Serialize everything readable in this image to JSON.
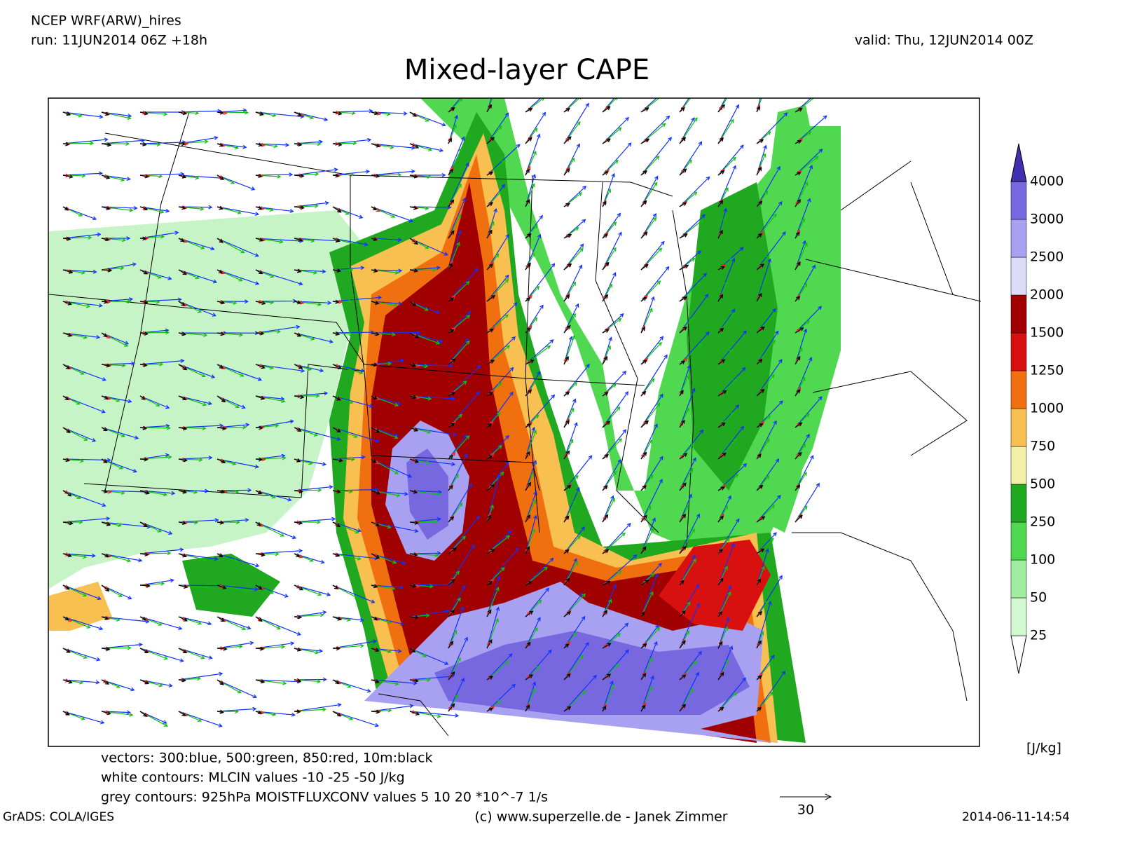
{
  "header": {
    "model": "NCEP WRF(ARW)_hires",
    "run": "run: 11JUN2014 06Z +18h",
    "valid": "valid: Thu, 12JUN2014 00Z"
  },
  "title": "Mixed-layer CAPE",
  "colorbar": {
    "levels": [
      25,
      50,
      100,
      250,
      500,
      750,
      1000,
      1250,
      1500,
      2000,
      2500,
      3000,
      4000
    ],
    "colors": [
      "#ffffff",
      "#d2f8d2",
      "#a0eca0",
      "#50d850",
      "#20a820",
      "#f2f0a8",
      "#f8c050",
      "#f07010",
      "#d81010",
      "#a00000",
      "#dcdcf8",
      "#a8a0f0",
      "#7868e0",
      "#4030b0"
    ],
    "unit": "[J/kg]"
  },
  "notes": [
    "vectors: 300:blue, 500:green, 850:red, 10m:black",
    "white contours: MLCIN values -10 -25 -50 J/kg",
    "grey contours: 925hPa MOISTFLUXCONV values 5 10 20 *10^-7 1/s"
  ],
  "reference_vector": "30",
  "footer": {
    "left": "GrADS: COLA/IGES",
    "center": "(c) www.superzelle.de - Janek Zimmer",
    "right": "2014-06-11-14:54"
  }
}
